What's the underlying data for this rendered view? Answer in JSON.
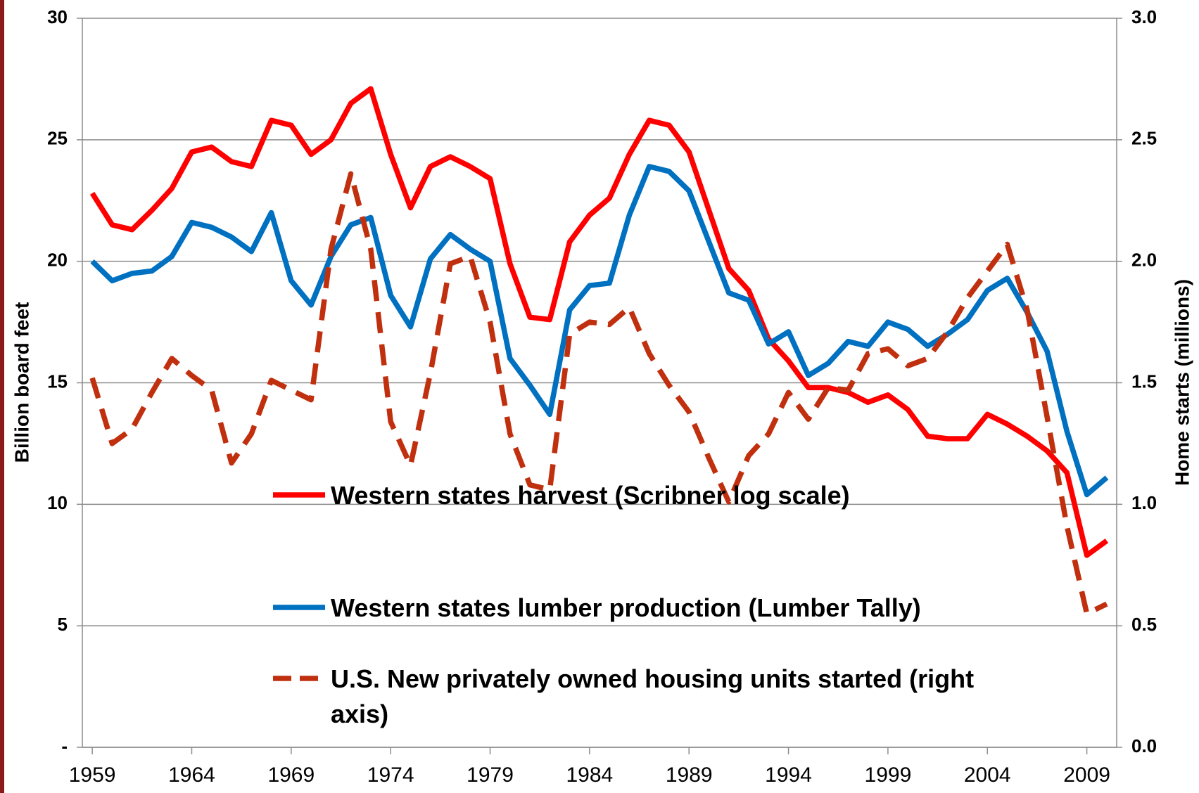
{
  "chart_data": {
    "type": "line",
    "ylabel": "Billion board feet",
    "y2label": "Home starts (millions)",
    "x": [
      1959,
      1960,
      1961,
      1962,
      1963,
      1964,
      1965,
      1966,
      1967,
      1968,
      1969,
      1970,
      1971,
      1972,
      1973,
      1974,
      1975,
      1976,
      1977,
      1978,
      1979,
      1980,
      1981,
      1982,
      1983,
      1984,
      1985,
      1986,
      1987,
      1988,
      1989,
      1990,
      1991,
      1992,
      1993,
      1994,
      1995,
      1996,
      1997,
      1998,
      1999,
      2000,
      2001,
      2002,
      2003,
      2004,
      2005,
      2006,
      2007,
      2008,
      2009,
      2010
    ],
    "xlim": [
      1958.5,
      2010.5
    ],
    "xticks": [
      1959,
      1964,
      1969,
      1974,
      1979,
      1984,
      1989,
      1994,
      1999,
      2004,
      2009
    ],
    "ylim": [
      0,
      30
    ],
    "yticks": [
      {
        "value": 0,
        "label": "-"
      },
      5,
      10,
      15,
      20,
      25,
      30
    ],
    "y2lim": [
      0,
      3
    ],
    "y2ticks": [
      {
        "value": 0,
        "label": "0.0"
      },
      {
        "value": 0.5,
        "label": "0.5"
      },
      {
        "value": 1,
        "label": "1.0"
      },
      {
        "value": 1.5,
        "label": "1.5"
      },
      {
        "value": 2,
        "label": "2.0"
      },
      {
        "value": 2.5,
        "label": "2.5"
      },
      {
        "value": 3,
        "label": "3.0"
      }
    ],
    "grid": true,
    "series": [
      {
        "name": "Western states harvest (Scribner log scale)",
        "color": "#ff0000",
        "linestyle": "solid",
        "values": [
          22.8,
          21.5,
          21.3,
          22.1,
          23.0,
          24.5,
          24.7,
          24.1,
          23.9,
          25.8,
          25.6,
          24.4,
          25.0,
          26.5,
          27.1,
          24.4,
          22.2,
          23.9,
          24.3,
          23.9,
          23.4,
          19.9,
          17.7,
          17.6,
          20.8,
          21.9,
          22.6,
          24.4,
          25.8,
          25.6,
          24.5,
          22.1,
          19.7,
          18.8,
          16.8,
          15.9,
          14.8,
          14.8,
          14.6,
          14.2,
          14.5,
          13.9,
          12.8,
          12.7,
          12.7,
          13.7,
          13.3,
          12.8,
          12.2,
          11.3,
          7.9,
          8.5
        ]
      },
      {
        "name": "Western states lumber production (Lumber Tally)",
        "color": "#0070c0",
        "linestyle": "solid",
        "values": [
          20.0,
          19.2,
          19.5,
          19.6,
          20.2,
          21.6,
          21.4,
          21.0,
          20.4,
          22.0,
          19.2,
          18.2,
          20.2,
          21.5,
          21.8,
          18.6,
          17.3,
          20.1,
          21.1,
          20.5,
          20.0,
          16.0,
          14.9,
          13.7,
          18.0,
          19.0,
          19.1,
          21.9,
          23.9,
          23.7,
          22.9,
          20.8,
          18.7,
          18.4,
          16.6,
          17.1,
          15.3,
          15.8,
          16.7,
          16.5,
          17.5,
          17.2,
          16.5,
          17.0,
          17.6,
          18.8,
          19.3,
          17.9,
          16.3,
          13.0,
          10.4,
          11.1
        ]
      },
      {
        "name": "U.S. New privately owned housing units started (right axis)",
        "color": "#c0300f",
        "linestyle": "dashed",
        "axis": "y2",
        "values": [
          1.52,
          1.25,
          1.31,
          1.46,
          1.6,
          1.53,
          1.47,
          1.17,
          1.29,
          1.51,
          1.47,
          1.43,
          2.05,
          2.36,
          2.05,
          1.34,
          1.16,
          1.54,
          1.99,
          2.02,
          1.75,
          1.29,
          1.08,
          1.06,
          1.7,
          1.75,
          1.74,
          1.81,
          1.62,
          1.49,
          1.38,
          1.19,
          1.01,
          1.2,
          1.29,
          1.46,
          1.35,
          1.48,
          1.47,
          1.62,
          1.64,
          1.57,
          1.6,
          1.71,
          1.85,
          1.96,
          2.07,
          1.8,
          1.36,
          0.91,
          0.55,
          0.59
        ]
      }
    ]
  }
}
